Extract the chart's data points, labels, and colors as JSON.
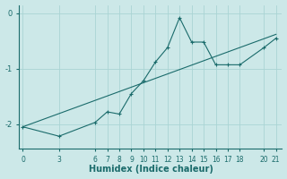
{
  "xlabel": "Humidex (Indice chaleur)",
  "background_color": "#cce8e8",
  "grid_color": "#aad4d4",
  "line_color": "#1a6b6b",
  "xticks": [
    0,
    3,
    6,
    7,
    8,
    9,
    10,
    11,
    12,
    13,
    14,
    15,
    16,
    17,
    18,
    20,
    21
  ],
  "yticks": [
    0,
    -1,
    -2
  ],
  "xlim": [
    -0.3,
    21.5
  ],
  "ylim": [
    -2.45,
    0.15
  ],
  "jagged_x": [
    0,
    3,
    6,
    7,
    8,
    9,
    10,
    11,
    12,
    13,
    14,
    15,
    16,
    17,
    18,
    20,
    21
  ],
  "jagged_y": [
    -2.05,
    -2.22,
    -1.97,
    -1.78,
    -1.82,
    -1.45,
    -1.22,
    -0.88,
    -0.62,
    -0.08,
    -0.52,
    -0.52,
    -0.93,
    -0.93,
    -0.93,
    -0.62,
    -0.45
  ],
  "trend_x": [
    0,
    21
  ],
  "trend_y": [
    -2.05,
    -0.38
  ],
  "figsize": [
    3.2,
    2.0
  ],
  "dpi": 100
}
